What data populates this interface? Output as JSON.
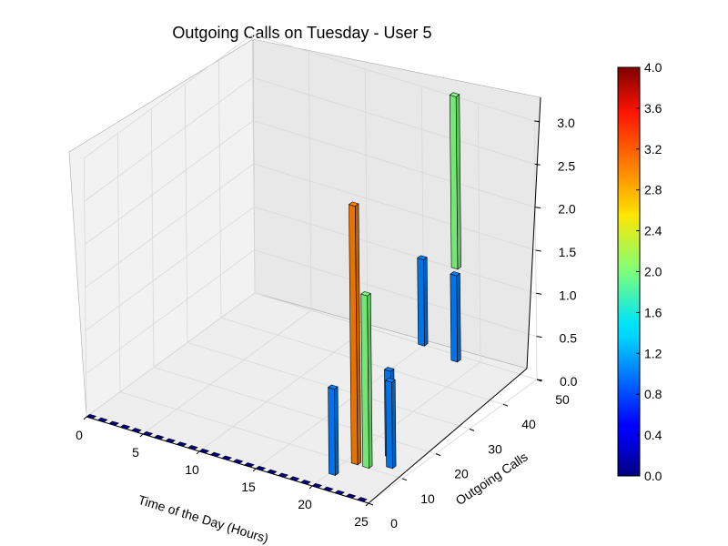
{
  "chart_data": {
    "type": "bar",
    "subtype": "3d-bar",
    "title": "Outgoing Calls on Tuesday - User 5",
    "xlabel": "Time of the Day (Hours)",
    "ylabel": "Outgoing Calls",
    "zlabel": "",
    "xlim": [
      0,
      25
    ],
    "ylim": [
      0,
      50
    ],
    "zlim": [
      0,
      3
    ],
    "x_ticks": [
      "0",
      "5",
      "10",
      "15",
      "20",
      "25"
    ],
    "y_ticks": [
      "0",
      "10",
      "20",
      "30",
      "40",
      "50"
    ],
    "z_ticks": [
      "0.0",
      "0.5",
      "1.0",
      "1.5",
      "2.0",
      "2.5",
      "3.0"
    ],
    "grid": true,
    "colormap": "jet",
    "colorbar": {
      "min": 0.0,
      "max": 4.0,
      "ticks": [
        "0.0",
        "0.4",
        "0.8",
        "1.2",
        "1.6",
        "2.0",
        "2.4",
        "2.8",
        "3.2",
        "3.6",
        "4.0"
      ]
    },
    "bars": [
      {
        "x": 20.0,
        "y": 5,
        "z0": 0,
        "height": 1.0
      },
      {
        "x": 20.5,
        "y": 10,
        "z0": 0,
        "height": 3.0
      },
      {
        "x": 21.5,
        "y": 10,
        "z0": 0,
        "height": 2.0
      },
      {
        "x": 22.0,
        "y": 15,
        "z0": 0,
        "height": 1.0
      },
      {
        "x": 23.0,
        "y": 12,
        "z0": 0,
        "height": 1.0
      },
      {
        "x": 19.0,
        "y": 35,
        "z0": 0.6,
        "height": 1.0
      },
      {
        "x": 18.0,
        "y": 48,
        "z0": 0,
        "height": 1.0
      },
      {
        "x": 17.5,
        "y": 50,
        "z0": 1.0,
        "height": 2.0
      }
    ],
    "baseline_zero_bars": {
      "x_from": 0,
      "x_to": 24,
      "y": 0,
      "height": 0.0
    }
  }
}
